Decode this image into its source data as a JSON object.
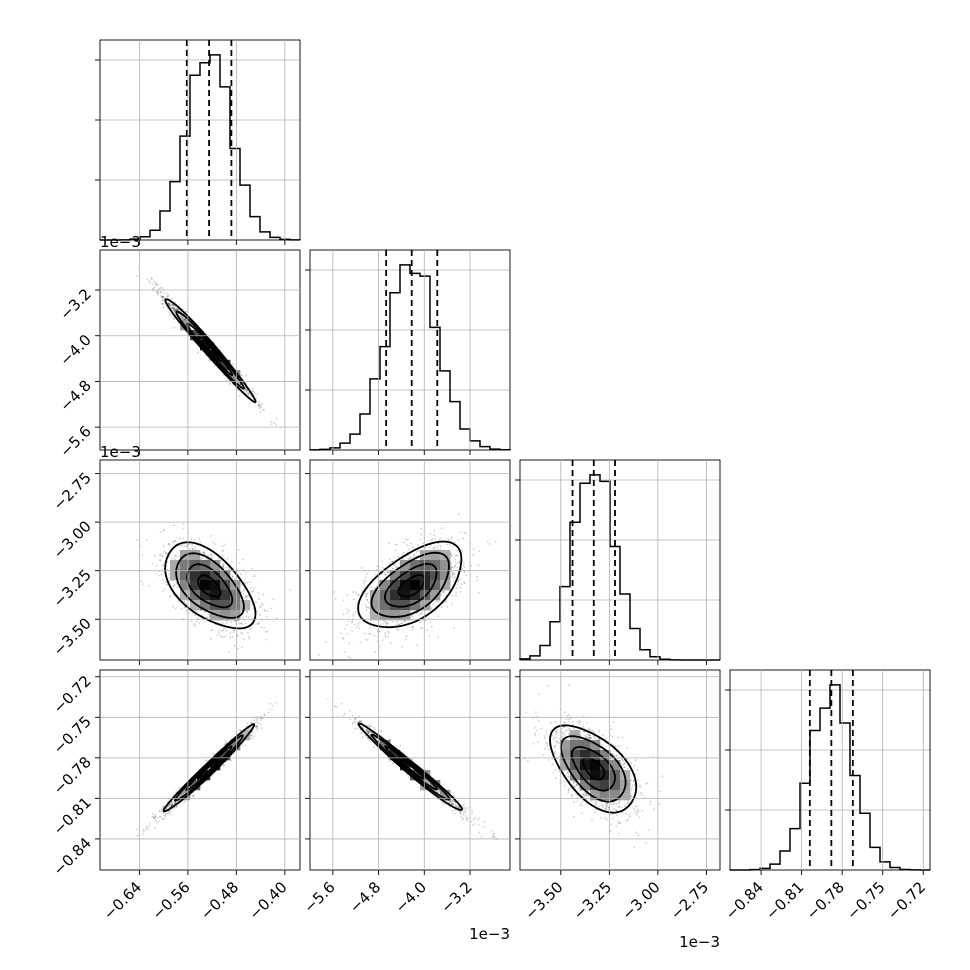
{
  "chart_data": {
    "type": "corner",
    "parameters": [
      {
        "mean": -0.525,
        "sd": 0.037,
        "range": [
          -0.705,
          -0.375
        ],
        "axis_ticks": [
          -0.64,
          -0.56,
          -0.48,
          -0.4
        ],
        "axis_tick_labels": [
          "−0.64",
          "−0.56",
          "−0.48",
          "−0.40"
        ],
        "offset_text": ""
      },
      {
        "mean": -4.22,
        "sd": 0.45,
        "range": [
          -6.0,
          -2.5
        ],
        "axis_ticks": [
          -5.6,
          -4.8,
          -4.0,
          -3.2
        ],
        "axis_tick_labels": [
          "−5.6",
          "−4.8",
          "−4.0",
          "−3.2"
        ],
        "offset_text": "1e−3"
      },
      {
        "mean": -3.33,
        "sd": 0.11,
        "range": [
          -3.71,
          -2.68
        ],
        "axis_ticks": [
          -3.5,
          -3.25,
          -3.0,
          -2.75
        ],
        "axis_tick_labels": [
          "−3.50",
          "−3.25",
          "−3.00",
          "−2.75"
        ],
        "offset_text": "1e−3"
      },
      {
        "mean": -0.788,
        "sd": 0.016,
        "range": [
          -0.863,
          -0.715
        ],
        "axis_ticks": [
          -0.84,
          -0.81,
          -0.78,
          -0.75,
          -0.72
        ],
        "axis_tick_labels": [
          "−0.84",
          "−0.81",
          "−0.78",
          "−0.75",
          "−0.72"
        ],
        "offset_text": ""
      }
    ],
    "correlations": {
      "1-0": -0.985,
      "2-0": -0.55,
      "2-1": 0.55,
      "3-0": 0.985,
      "3-1": -0.985,
      "3-2": -0.55
    },
    "quantiles": [
      0.16,
      0.5,
      0.84
    ],
    "bins": 20,
    "grid": true,
    "colors": {
      "ink": "#000000",
      "grid": "#b0b0b0"
    }
  }
}
